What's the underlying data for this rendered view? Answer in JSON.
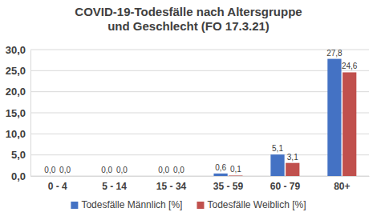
{
  "chart_data": {
    "type": "bar",
    "title": "COVID-19-Todesfälle nach Altersgruppe und Geschlecht (FO 17.3.21)",
    "categories": [
      "0 - 4",
      "5 - 14",
      "15 - 34",
      "35 - 59",
      "60 - 79",
      "80+"
    ],
    "series": [
      {
        "name": "Todesfälle Männlich [%]",
        "color": "#4472c4",
        "values": [
          0,
          0,
          0,
          0.6,
          5.1,
          27.8
        ],
        "value_labels": [
          "0,0",
          "0,0",
          "0,0",
          "0,6",
          "5,1",
          "27,8"
        ]
      },
      {
        "name": "Todesfälle Weiblich [%]",
        "color": "#c0504d",
        "values": [
          0,
          0,
          0,
          0.1,
          3.1,
          24.6
        ],
        "value_labels": [
          "0,0",
          "0,0",
          "0,0",
          "0,1",
          "3,1",
          "24,6"
        ]
      }
    ],
    "ylim": [
      0,
      30
    ],
    "yticks": [
      {
        "value": 0,
        "label": "0,0"
      },
      {
        "value": 5,
        "label": "5,0"
      },
      {
        "value": 10,
        "label": "10,0"
      },
      {
        "value": 15,
        "label": "15,0"
      },
      {
        "value": 20,
        "label": "20,0"
      },
      {
        "value": 25,
        "label": "25,0"
      },
      {
        "value": 30,
        "label": "30,0"
      }
    ],
    "grid": true,
    "legend": "bottom",
    "data_labels": true
  }
}
